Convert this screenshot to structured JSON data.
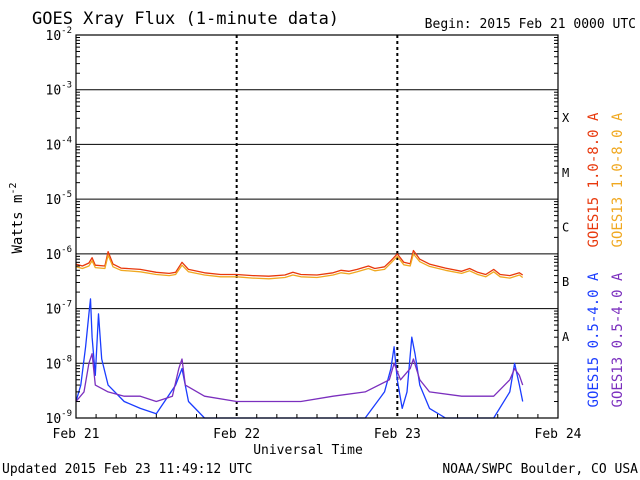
{
  "title": "GOES Xray Flux (1-minute data)",
  "begin_label": "Begin:  2015 Feb 21 0000 UTC",
  "footer_left": "Updated 2015 Feb 23 11:49:12 UTC",
  "footer_right": "NOAA/SWPC Boulder, CO USA",
  "chart_data": {
    "type": "line",
    "title": "GOES Xray Flux (1-minute data)",
    "xlabel": "Universal Time",
    "ylabel": "Watts m-2",
    "y_scale": "log",
    "ylim": [
      1e-09,
      0.01
    ],
    "xlim_days": [
      0,
      3
    ],
    "x_tick_labels": [
      "Feb 21",
      "Feb 22",
      "Feb 23",
      "Feb 24"
    ],
    "y_tick_labels": [
      {
        "base": "10",
        "exp": "-9"
      },
      {
        "base": "10",
        "exp": "-8"
      },
      {
        "base": "10",
        "exp": "-7"
      },
      {
        "base": "10",
        "exp": "-6"
      },
      {
        "base": "10",
        "exp": "-5"
      },
      {
        "base": "10",
        "exp": "-4"
      },
      {
        "base": "10",
        "exp": "-3"
      },
      {
        "base": "10",
        "exp": "-2"
      }
    ],
    "flare_classes": [
      {
        "label": "A",
        "flux": 1e-08
      },
      {
        "label": "B",
        "flux": 1e-07
      },
      {
        "label": "C",
        "flux": 1e-06
      },
      {
        "label": "M",
        "flux": 1e-05
      },
      {
        "label": "X",
        "flux": 0.0001
      }
    ],
    "grid": true,
    "legend_position": "right",
    "series": [
      {
        "name": "GOES15 1.0-8.0 A",
        "color": "#e8380c",
        "points": [
          [
            0.0,
            6.5e-07
          ],
          [
            0.04,
            6e-07
          ],
          [
            0.08,
            6.8e-07
          ],
          [
            0.1,
            8.5e-07
          ],
          [
            0.12,
            6.2e-07
          ],
          [
            0.18,
            6e-07
          ],
          [
            0.2,
            1.1e-06
          ],
          [
            0.23,
            6.5e-07
          ],
          [
            0.28,
            5.5e-07
          ],
          [
            0.4,
            5.2e-07
          ],
          [
            0.5,
            4.6e-07
          ],
          [
            0.58,
            4.4e-07
          ],
          [
            0.62,
            4.6e-07
          ],
          [
            0.66,
            7e-07
          ],
          [
            0.7,
            5.2e-07
          ],
          [
            0.8,
            4.5e-07
          ],
          [
            0.9,
            4.2e-07
          ],
          [
            1.0,
            4.2e-07
          ],
          [
            1.1,
            4e-07
          ],
          [
            1.2,
            3.9e-07
          ],
          [
            1.3,
            4.1e-07
          ],
          [
            1.35,
            4.6e-07
          ],
          [
            1.4,
            4.2e-07
          ],
          [
            1.5,
            4.1e-07
          ],
          [
            1.6,
            4.5e-07
          ],
          [
            1.65,
            5e-07
          ],
          [
            1.7,
            4.8e-07
          ],
          [
            1.75,
            5.2e-07
          ],
          [
            1.82,
            6e-07
          ],
          [
            1.86,
            5.4e-07
          ],
          [
            1.92,
            5.8e-07
          ],
          [
            1.96,
            7.5e-07
          ],
          [
            2.0,
            1e-06
          ],
          [
            2.04,
            7e-07
          ],
          [
            2.08,
            6.6e-07
          ],
          [
            2.1,
            1.15e-06
          ],
          [
            2.14,
            8e-07
          ],
          [
            2.2,
            6.5e-07
          ],
          [
            2.3,
            5.5e-07
          ],
          [
            2.4,
            4.8e-07
          ],
          [
            2.45,
            5.4e-07
          ],
          [
            2.5,
            4.6e-07
          ],
          [
            2.55,
            4.2e-07
          ],
          [
            2.6,
            5.2e-07
          ],
          [
            2.64,
            4.2e-07
          ],
          [
            2.7,
            4e-07
          ],
          [
            2.76,
            4.5e-07
          ],
          [
            2.78,
            4.1e-07
          ]
        ]
      },
      {
        "name": "GOES13 1.0-8.0 A",
        "color": "#f0a820",
        "points": [
          [
            0.0,
            5.8e-07
          ],
          [
            0.04,
            5.4e-07
          ],
          [
            0.08,
            6e-07
          ],
          [
            0.1,
            7.5e-07
          ],
          [
            0.12,
            5.6e-07
          ],
          [
            0.18,
            5.4e-07
          ],
          [
            0.2,
            9.5e-07
          ],
          [
            0.23,
            5.8e-07
          ],
          [
            0.28,
            5e-07
          ],
          [
            0.4,
            4.7e-07
          ],
          [
            0.5,
            4.2e-07
          ],
          [
            0.58,
            4e-07
          ],
          [
            0.62,
            4.2e-07
          ],
          [
            0.66,
            6.2e-07
          ],
          [
            0.7,
            4.7e-07
          ],
          [
            0.8,
            4.1e-07
          ],
          [
            0.9,
            3.8e-07
          ],
          [
            1.0,
            3.8e-07
          ],
          [
            1.1,
            3.6e-07
          ],
          [
            1.2,
            3.5e-07
          ],
          [
            1.3,
            3.7e-07
          ],
          [
            1.35,
            4.1e-07
          ],
          [
            1.4,
            3.8e-07
          ],
          [
            1.5,
            3.7e-07
          ],
          [
            1.6,
            4.1e-07
          ],
          [
            1.65,
            4.5e-07
          ],
          [
            1.7,
            4.3e-07
          ],
          [
            1.75,
            4.7e-07
          ],
          [
            1.82,
            5.4e-07
          ],
          [
            1.86,
            4.9e-07
          ],
          [
            1.92,
            5.2e-07
          ],
          [
            1.96,
            6.8e-07
          ],
          [
            2.0,
            9e-07
          ],
          [
            2.04,
            6.3e-07
          ],
          [
            2.08,
            6e-07
          ],
          [
            2.1,
            1e-06
          ],
          [
            2.14,
            7.2e-07
          ],
          [
            2.2,
            5.9e-07
          ],
          [
            2.3,
            5e-07
          ],
          [
            2.4,
            4.4e-07
          ],
          [
            2.45,
            4.9e-07
          ],
          [
            2.5,
            4.2e-07
          ],
          [
            2.55,
            3.8e-07
          ],
          [
            2.6,
            4.7e-07
          ],
          [
            2.64,
            3.8e-07
          ],
          [
            2.7,
            3.6e-07
          ],
          [
            2.76,
            4.1e-07
          ],
          [
            2.78,
            3.7e-07
          ]
        ]
      },
      {
        "name": "GOES15 0.5-4.0 A",
        "color": "#1a3cff",
        "points": [
          [
            0.0,
            2e-09
          ],
          [
            0.03,
            4e-09
          ],
          [
            0.06,
            2e-08
          ],
          [
            0.08,
            8e-08
          ],
          [
            0.09,
            1.5e-07
          ],
          [
            0.1,
            3e-08
          ],
          [
            0.12,
            6e-09
          ],
          [
            0.14,
            8e-08
          ],
          [
            0.16,
            1.2e-08
          ],
          [
            0.2,
            4e-09
          ],
          [
            0.3,
            2e-09
          ],
          [
            0.4,
            1.5e-09
          ],
          [
            0.5,
            1.2e-09
          ],
          [
            0.62,
            4e-09
          ],
          [
            0.66,
            8e-09
          ],
          [
            0.7,
            2e-09
          ],
          [
            0.8,
            1e-09
          ],
          [
            1.0,
            1e-09
          ],
          [
            1.5,
            1e-09
          ],
          [
            1.8,
            1e-09
          ],
          [
            1.92,
            3e-09
          ],
          [
            1.96,
            8e-09
          ],
          [
            1.98,
            2e-08
          ],
          [
            2.0,
            5e-09
          ],
          [
            2.03,
            1.5e-09
          ],
          [
            2.06,
            3e-09
          ],
          [
            2.09,
            3e-08
          ],
          [
            2.11,
            1.5e-08
          ],
          [
            2.14,
            4e-09
          ],
          [
            2.2,
            1.5e-09
          ],
          [
            2.3,
            1e-09
          ],
          [
            2.6,
            1e-09
          ],
          [
            2.7,
            3e-09
          ],
          [
            2.73,
            1e-08
          ],
          [
            2.76,
            4e-09
          ],
          [
            2.78,
            2e-09
          ]
        ]
      },
      {
        "name": "GOES13 0.5-4.0 A",
        "color": "#7b2fbe",
        "points": [
          [
            0.0,
            2e-09
          ],
          [
            0.05,
            3e-09
          ],
          [
            0.08,
            1e-08
          ],
          [
            0.1,
            1.5e-08
          ],
          [
            0.12,
            4e-09
          ],
          [
            0.2,
            3e-09
          ],
          [
            0.3,
            2.5e-09
          ],
          [
            0.4,
            2.5e-09
          ],
          [
            0.5,
            2e-09
          ],
          [
            0.6,
            2.5e-09
          ],
          [
            0.64,
            8e-09
          ],
          [
            0.66,
            1.2e-08
          ],
          [
            0.68,
            4e-09
          ],
          [
            0.8,
            2.5e-09
          ],
          [
            1.0,
            2e-09
          ],
          [
            1.2,
            2e-09
          ],
          [
            1.4,
            2e-09
          ],
          [
            1.6,
            2.5e-09
          ],
          [
            1.8,
            3e-09
          ],
          [
            1.95,
            5e-09
          ],
          [
            1.98,
            1e-08
          ],
          [
            2.02,
            5e-09
          ],
          [
            2.08,
            8e-09
          ],
          [
            2.1,
            1.2e-08
          ],
          [
            2.14,
            5e-09
          ],
          [
            2.2,
            3e-09
          ],
          [
            2.4,
            2.5e-09
          ],
          [
            2.6,
            2.5e-09
          ],
          [
            2.7,
            5e-09
          ],
          [
            2.73,
            8e-09
          ],
          [
            2.76,
            6e-09
          ],
          [
            2.78,
            4e-09
          ]
        ]
      }
    ]
  }
}
